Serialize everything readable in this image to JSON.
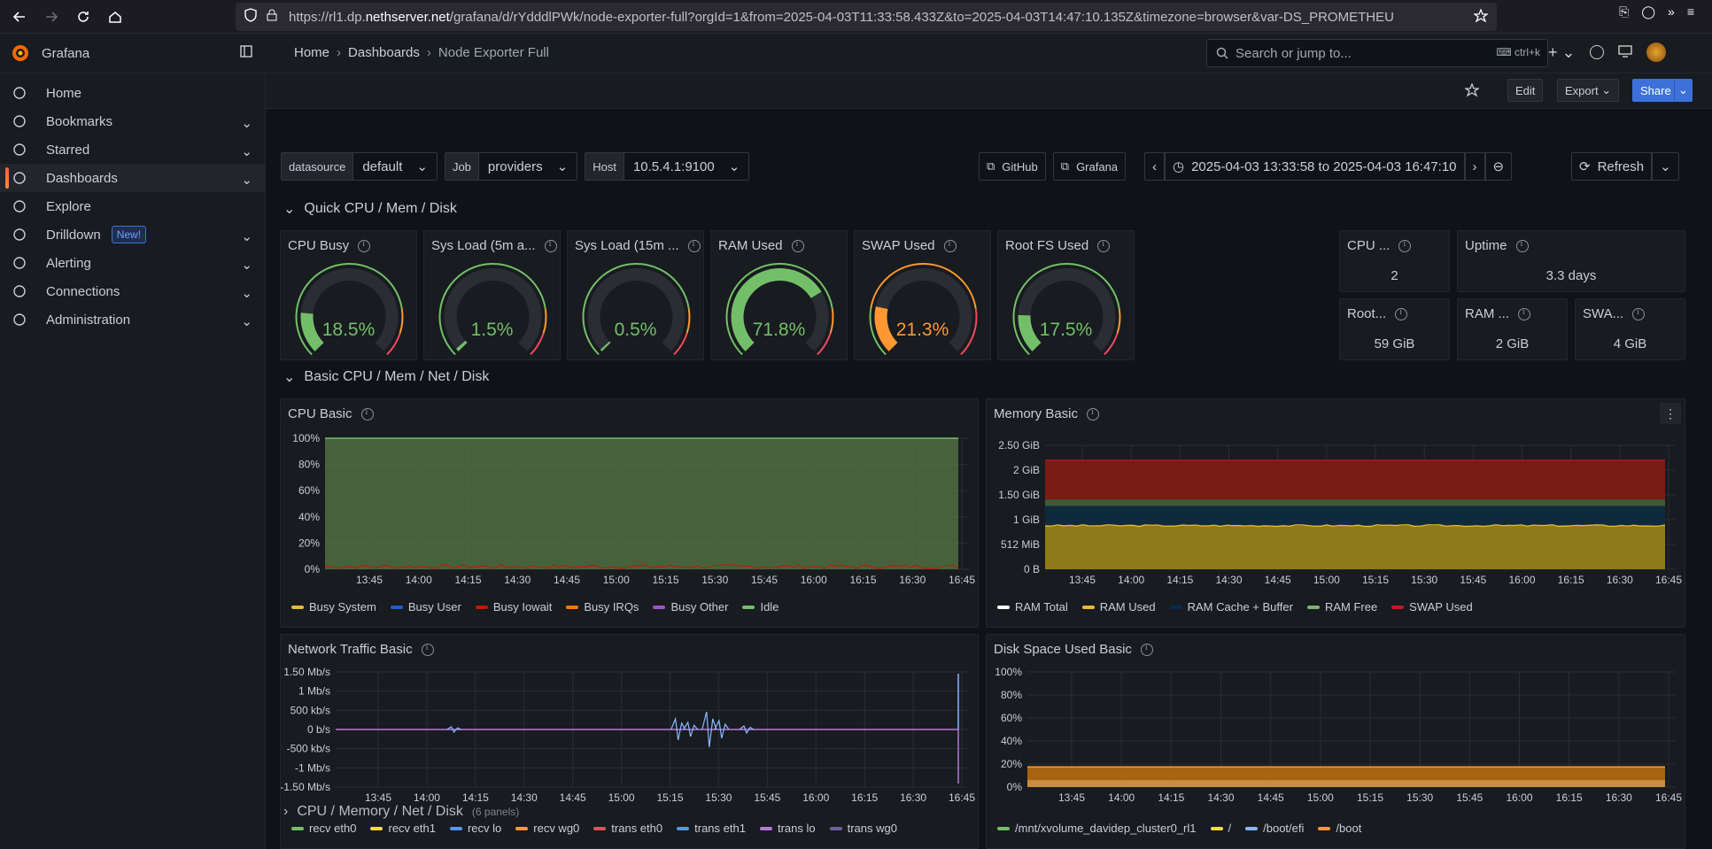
{
  "browser": {
    "url_host": "https://rl1.dp.",
    "url_domain": "nethserver.net",
    "url_path": "/grafana/d/rYdddlPWk/node-exporter-full?orgId=1&from=2025-04-03T11:33:58.433Z&to=2025-04-03T14:47:10.135Z&timezone=browser&var-DS_PROMETHEU"
  },
  "app": {
    "name": "Grafana"
  },
  "sidebar": {
    "items": [
      {
        "label": "Home",
        "icon": "home-icon"
      },
      {
        "label": "Bookmarks",
        "icon": "bookmark-icon",
        "chevron": true
      },
      {
        "label": "Starred",
        "icon": "star-icon",
        "chevron": true
      },
      {
        "label": "Dashboards",
        "icon": "dashboards-grid-icon",
        "chevron": true,
        "active": true
      },
      {
        "label": "Explore",
        "icon": "compass-icon"
      },
      {
        "label": "Drilldown",
        "icon": "drilldown-icon",
        "chevron": true,
        "badge": "New!"
      },
      {
        "label": "Alerting",
        "icon": "bell-icon",
        "chevron": true
      },
      {
        "label": "Connections",
        "icon": "link-icon",
        "chevron": true
      },
      {
        "label": "Administration",
        "icon": "gear-icon",
        "chevron": true
      }
    ]
  },
  "breadcrumb": {
    "home": "Home",
    "dashboards": "Dashboards",
    "current": "Node Exporter Full"
  },
  "search": {
    "placeholder": "Search or jump to...",
    "shortcut": "ctrl+k"
  },
  "toolbar": {
    "edit": "Edit",
    "export": "Export",
    "share": "Share"
  },
  "variables": [
    {
      "label": "datasource",
      "value": "default"
    },
    {
      "label": "Job",
      "value": "providers"
    },
    {
      "label": "Host",
      "value": "10.5.4.1:9100"
    }
  ],
  "links": {
    "github": "GitHub",
    "grafana": "Grafana"
  },
  "timerange": {
    "text": "2025-04-03 13:33:58 to 2025-04-03 16:47:10"
  },
  "refresh": {
    "label": "Refresh"
  },
  "rows": {
    "quick": "Quick CPU / Mem / Disk",
    "basic": "Basic CPU / Mem / Net / Disk",
    "next": "CPU / Memory / Net / Disk",
    "next_count": "(6 panels)"
  },
  "gauges": [
    {
      "title": "CPU Busy",
      "value": "18.5%",
      "fraction": 0.185,
      "color": "#73bf69"
    },
    {
      "title": "Sys Load (5m a...",
      "value": "1.5%",
      "fraction": 0.015,
      "color": "#73bf69"
    },
    {
      "title": "Sys Load (15m ...",
      "value": "0.5%",
      "fraction": 0.005,
      "color": "#73bf69"
    },
    {
      "title": "RAM Used",
      "value": "71.8%",
      "fraction": 0.718,
      "color": "#73bf69"
    },
    {
      "title": "SWAP Used",
      "value": "21.3%",
      "fraction": 0.213,
      "color": "#ff9830"
    },
    {
      "title": "Root FS Used",
      "value": "17.5%",
      "fraction": 0.175,
      "color": "#73bf69"
    }
  ],
  "stats": {
    "cpu_cores": {
      "title": "CPU ...",
      "value": "2"
    },
    "uptime": {
      "title": "Uptime",
      "value": "3.3 days"
    },
    "rootfs_total": {
      "title": "Root...",
      "value": "59 GiB"
    },
    "ram_total": {
      "title": "RAM ...",
      "value": "2 GiB"
    },
    "swap_total": {
      "title": "SWA...",
      "value": "4 GiB"
    }
  },
  "panels": {
    "cpu": "CPU Basic",
    "memory": "Memory Basic",
    "network": "Network Traffic Basic",
    "disk": "Disk Space Used Basic"
  },
  "chart_data": [
    {
      "type": "area",
      "title": "CPU Basic",
      "x": [
        "13:45",
        "14:00",
        "14:15",
        "14:30",
        "14:45",
        "15:00",
        "15:15",
        "15:30",
        "15:45",
        "16:00",
        "16:15",
        "16:30",
        "16:45"
      ],
      "yticks": [
        "0%",
        "20%",
        "40%",
        "60%",
        "80%",
        "100%"
      ],
      "ylim": [
        0,
        100
      ],
      "series": [
        {
          "name": "Busy System",
          "color": "#eab839"
        },
        {
          "name": "Busy User",
          "color": "#1f60c4"
        },
        {
          "name": "Busy Iowait",
          "color": "#bf1b00"
        },
        {
          "name": "Busy IRQs",
          "color": "#ff780a"
        },
        {
          "name": "Busy Other",
          "color": "#a352cc"
        },
        {
          "name": "Idle",
          "color": "#73bf69"
        }
      ]
    },
    {
      "type": "area",
      "title": "Memory Basic",
      "x": [
        "13:45",
        "14:00",
        "14:15",
        "14:30",
        "14:45",
        "15:00",
        "15:15",
        "15:30",
        "15:45",
        "16:00",
        "16:15",
        "16:30",
        "16:45"
      ],
      "yticks": [
        "0 B",
        "512 MiB",
        "1 GiB",
        "1.50 GiB",
        "2 GiB",
        "2.50 GiB"
      ],
      "series": [
        {
          "name": "RAM Total",
          "color": "#ffffff"
        },
        {
          "name": "RAM Used",
          "color": "#eab839"
        },
        {
          "name": "RAM Cache + Buffer",
          "color": "#052b51"
        },
        {
          "name": "RAM Free",
          "color": "#7eb26d"
        },
        {
          "name": "SWAP Used",
          "color": "#c4162a"
        }
      ]
    },
    {
      "type": "line",
      "title": "Network Traffic Basic",
      "x": [
        "13:45",
        "14:00",
        "14:15",
        "14:30",
        "14:45",
        "15:00",
        "15:15",
        "15:30",
        "15:45",
        "16:00",
        "16:15",
        "16:30",
        "16:45"
      ],
      "yticks": [
        "-1.50 Mb/s",
        "-1 Mb/s",
        "-500 kb/s",
        "0 b/s",
        "500 kb/s",
        "1 Mb/s",
        "1.50 Mb/s"
      ],
      "series": [
        {
          "name": "recv eth0",
          "color": "#73bf69"
        },
        {
          "name": "recv eth1",
          "color": "#fade2a"
        },
        {
          "name": "recv lo",
          "color": "#5794f2"
        },
        {
          "name": "recv wg0",
          "color": "#ff9830"
        },
        {
          "name": "trans eth0",
          "color": "#f2495c"
        },
        {
          "name": "trans eth1",
          "color": "#5794f2"
        },
        {
          "name": "trans lo",
          "color": "#b877d9"
        },
        {
          "name": "trans wg0",
          "color": "#705da0"
        }
      ]
    },
    {
      "type": "area",
      "title": "Disk Space Used Basic",
      "x": [
        "13:45",
        "14:00",
        "14:15",
        "14:30",
        "14:45",
        "15:00",
        "15:15",
        "15:30",
        "15:45",
        "16:00",
        "16:15",
        "16:30",
        "16:45"
      ],
      "yticks": [
        "0%",
        "20%",
        "40%",
        "60%",
        "80%",
        "100%"
      ],
      "ylim": [
        0,
        100
      ],
      "series": [
        {
          "name": "/mnt/xvolume_davidep_cluster0_rl1",
          "color": "#73bf69"
        },
        {
          "name": "/",
          "color": "#fade2a"
        },
        {
          "name": "/boot/efi",
          "color": "#8ab8ff"
        },
        {
          "name": "/boot",
          "color": "#ff9830"
        }
      ]
    }
  ]
}
